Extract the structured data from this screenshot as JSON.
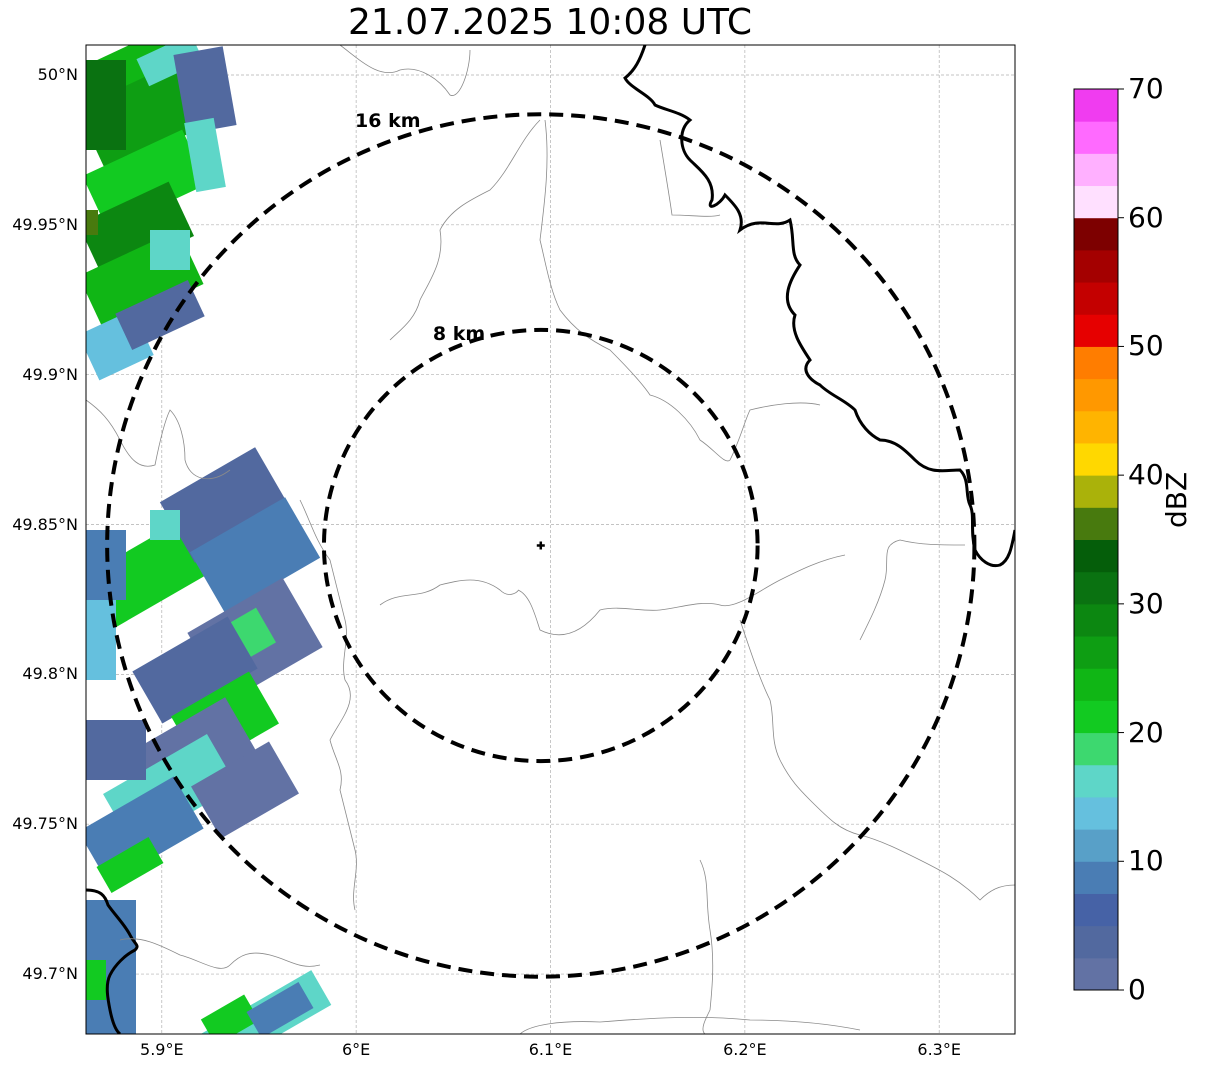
{
  "title": "21.07.2025 10:08 UTC",
  "map": {
    "extent": {
      "lon_min": 5.861,
      "lon_max": 6.339,
      "lat_min": 49.68,
      "lat_max": 50.01
    },
    "gridlines": true,
    "lon_ticks": [
      {
        "value": 5.9,
        "label": "5.9°E"
      },
      {
        "value": 6.0,
        "label": "6°E"
      },
      {
        "value": 6.1,
        "label": "6.1°E"
      },
      {
        "value": 6.2,
        "label": "6.2°E"
      },
      {
        "value": 6.3,
        "label": "6.3°E"
      }
    ],
    "lat_ticks": [
      {
        "value": 50.0,
        "label": "50°N"
      },
      {
        "value": 49.95,
        "label": "49.95°N"
      },
      {
        "value": 49.9,
        "label": "49.9°N"
      },
      {
        "value": 49.85,
        "label": "49.85°N"
      },
      {
        "value": 49.8,
        "label": "49.8°N"
      },
      {
        "value": 49.75,
        "label": "49.75°N"
      },
      {
        "value": 49.7,
        "label": "49.7°N"
      }
    ],
    "center": {
      "lon": 6.095,
      "lat": 49.843
    },
    "rings": [
      {
        "radius_km": 8,
        "label": "8 km"
      },
      {
        "radius_km": 16,
        "label": "16 km"
      }
    ]
  },
  "colorbar": {
    "title": "dBZ",
    "min": 0,
    "max": 70,
    "step": 2.5,
    "ticks": [
      "0",
      "10",
      "20",
      "30",
      "40",
      "50",
      "60",
      "70"
    ],
    "colors": [
      "#6272a4",
      "#52699f",
      "#4662a6",
      "#4a7db4",
      "#58a0c8",
      "#65c0de",
      "#5ed6c8",
      "#3dd86f",
      "#12ca21",
      "#10b615",
      "#0e9e13",
      "#0c8711",
      "#0a7211",
      "#055e0a",
      "#487a0e",
      "#aab20a",
      "#ffd800",
      "#ffb400",
      "#ff9800",
      "#ff7d00",
      "#e60000",
      "#c40000",
      "#a40000",
      "#7d0000",
      "#ffe0ff",
      "#ffb0ff",
      "#ff6aff",
      "#f03cf0"
    ]
  }
}
